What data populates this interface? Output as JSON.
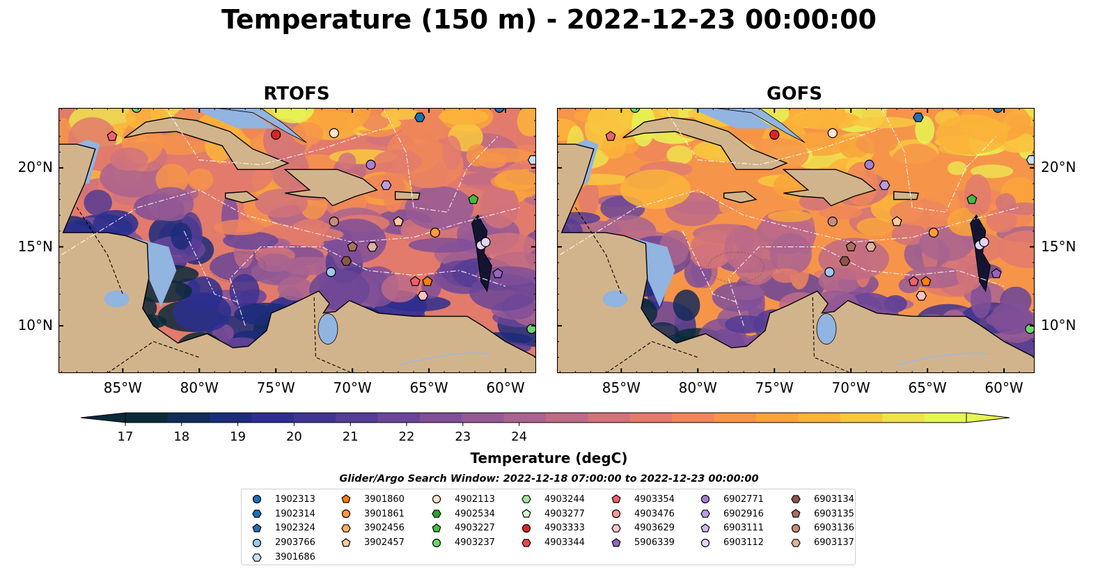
{
  "title": "Temperature (150 m) - 2022-12-23 00:00:00",
  "panels": [
    {
      "title": "RTOFS"
    },
    {
      "title": "GOFS"
    }
  ],
  "lon_ticks": [
    "85°W",
    "80°W",
    "75°W",
    "70°W",
    "65°W",
    "60°W"
  ],
  "lat_ticks": [
    "20°N",
    "15°N",
    "10°N"
  ],
  "colorbar": {
    "title": "Temperature (degC)",
    "ticks": [
      "17",
      "18",
      "19",
      "20",
      "21",
      "22",
      "23",
      "24"
    ],
    "colors": [
      "#0b2a39",
      "#142a58",
      "#1c2c7a",
      "#2c2f8e",
      "#3f3491",
      "#553c94",
      "#6a4598",
      "#804f98",
      "#955a95",
      "#a9648f",
      "#be6b86",
      "#d1737a",
      "#e27b6c",
      "#ee865b",
      "#f6944a",
      "#f9a43c",
      "#fbb43a",
      "#f8c83f",
      "#eee24f",
      "#e6f554"
    ]
  },
  "search_window": "Glider/Argo Search Window: 2022-12-18 07:00:00 to 2022-12-23 00:00:00",
  "legend": [
    {
      "label": "1902313",
      "shape": "circle",
      "color": "#1f6fb4"
    },
    {
      "label": "1902314",
      "shape": "hexagon",
      "color": "#1f6fb4"
    },
    {
      "label": "1902324",
      "shape": "pentagon",
      "color": "#1f6fb4"
    },
    {
      "label": "2903766",
      "shape": "circle",
      "color": "#9cc8ec"
    },
    {
      "label": "3901686",
      "shape": "hexagon",
      "color": "#c6e2f7"
    },
    {
      "label": "3901860",
      "shape": "pentagon",
      "color": "#ff7f0e"
    },
    {
      "label": "3901861",
      "shape": "circle",
      "color": "#ff9a3c"
    },
    {
      "label": "3902456",
      "shape": "hexagon",
      "color": "#ffaf66"
    },
    {
      "label": "3902457",
      "shape": "pentagon",
      "color": "#ffc99a"
    },
    {
      "label": "4902113",
      "shape": "circle",
      "color": "#ffe4cc"
    },
    {
      "label": "4902534",
      "shape": "hexagon",
      "color": "#2ca02c"
    },
    {
      "label": "4903227",
      "shape": "pentagon",
      "color": "#3fbf3f"
    },
    {
      "label": "4903237",
      "shape": "circle",
      "color": "#6dd36d"
    },
    {
      "label": "4903244",
      "shape": "hexagon",
      "color": "#a3e6a3"
    },
    {
      "label": "4903277",
      "shape": "pentagon",
      "color": "#d6f5d6"
    },
    {
      "label": "4903333",
      "shape": "circle",
      "color": "#d62728"
    },
    {
      "label": "4903344",
      "shape": "hexagon",
      "color": "#e8454a"
    },
    {
      "label": "4903354",
      "shape": "pentagon",
      "color": "#f0606a"
    },
    {
      "label": "4903476",
      "shape": "circle",
      "color": "#f5999c"
    },
    {
      "label": "4903629",
      "shape": "hexagon",
      "color": "#fbc4c6"
    },
    {
      "label": "5906339",
      "shape": "pentagon",
      "color": "#9467bd"
    },
    {
      "label": "6902771",
      "shape": "circle",
      "color": "#a77fd0"
    },
    {
      "label": "6902916",
      "shape": "hexagon",
      "color": "#bb9ce0"
    },
    {
      "label": "6903111",
      "shape": "pentagon",
      "color": "#cfb8ee"
    },
    {
      "label": "6903112",
      "shape": "circle",
      "color": "#e3d4fa"
    },
    {
      "label": "6903134",
      "shape": "hexagon",
      "color": "#8c564b"
    },
    {
      "label": "6903135",
      "shape": "pentagon",
      "color": "#a8705f"
    },
    {
      "label": "6903136",
      "shape": "circle",
      "color": "#c38d7c"
    },
    {
      "label": "6903137",
      "shape": "hexagon",
      "color": "#e0b2a2"
    }
  ],
  "markers": [
    {
      "id": "4903333",
      "lon": -75.0,
      "lat": 22.1
    },
    {
      "id": "4902113",
      "lon": -71.2,
      "lat": 22.2
    },
    {
      "id": "6903134",
      "lon": -70.4,
      "lat": 14.1
    },
    {
      "id": "6903135",
      "lon": -70.0,
      "lat": 15.0
    },
    {
      "id": "6903137",
      "lon": -68.7,
      "lat": 15.0
    },
    {
      "id": "6903136",
      "lon": -71.2,
      "lat": 16.6
    },
    {
      "id": "3902457",
      "lon": -67.0,
      "lat": 16.6
    },
    {
      "id": "3901861",
      "lon": -64.6,
      "lat": 15.9
    },
    {
      "id": "4903354",
      "lon": -65.9,
      "lat": 12.8
    },
    {
      "id": "3901860",
      "lon": -65.1,
      "lat": 12.8
    },
    {
      "id": "4903629",
      "lon": -65.4,
      "lat": 11.9
    },
    {
      "id": "2903766",
      "lon": -71.4,
      "lat": 13.4
    },
    {
      "id": "6902771",
      "lon": -68.8,
      "lat": 20.2
    },
    {
      "id": "6902916",
      "lon": -67.8,
      "lat": 18.9
    },
    {
      "id": "1902314",
      "lon": -65.6,
      "lat": 23.2
    },
    {
      "id": "4903227",
      "lon": -62.1,
      "lat": 18.0
    },
    {
      "id": "6903111",
      "lon": -61.5,
      "lat": 15.2
    },
    {
      "id": "6903112",
      "lon": -61.6,
      "lat": 15.1
    },
    {
      "id": "6903112b",
      "lon": -61.3,
      "lat": 15.3
    },
    {
      "id": "5906339",
      "lon": -60.5,
      "lat": 13.3
    },
    {
      "id": "3901686",
      "lon": -58.2,
      "lat": 20.5
    },
    {
      "id": "4903237",
      "lon": -58.3,
      "lat": 9.8
    },
    {
      "id": "1902313",
      "lon": -60.4,
      "lat": 23.8
    },
    {
      "id": "4903237b",
      "lon": -84.1,
      "lat": 23.8
    },
    {
      "id": "4903354b",
      "lon": -85.7,
      "lat": 22.0
    }
  ]
}
